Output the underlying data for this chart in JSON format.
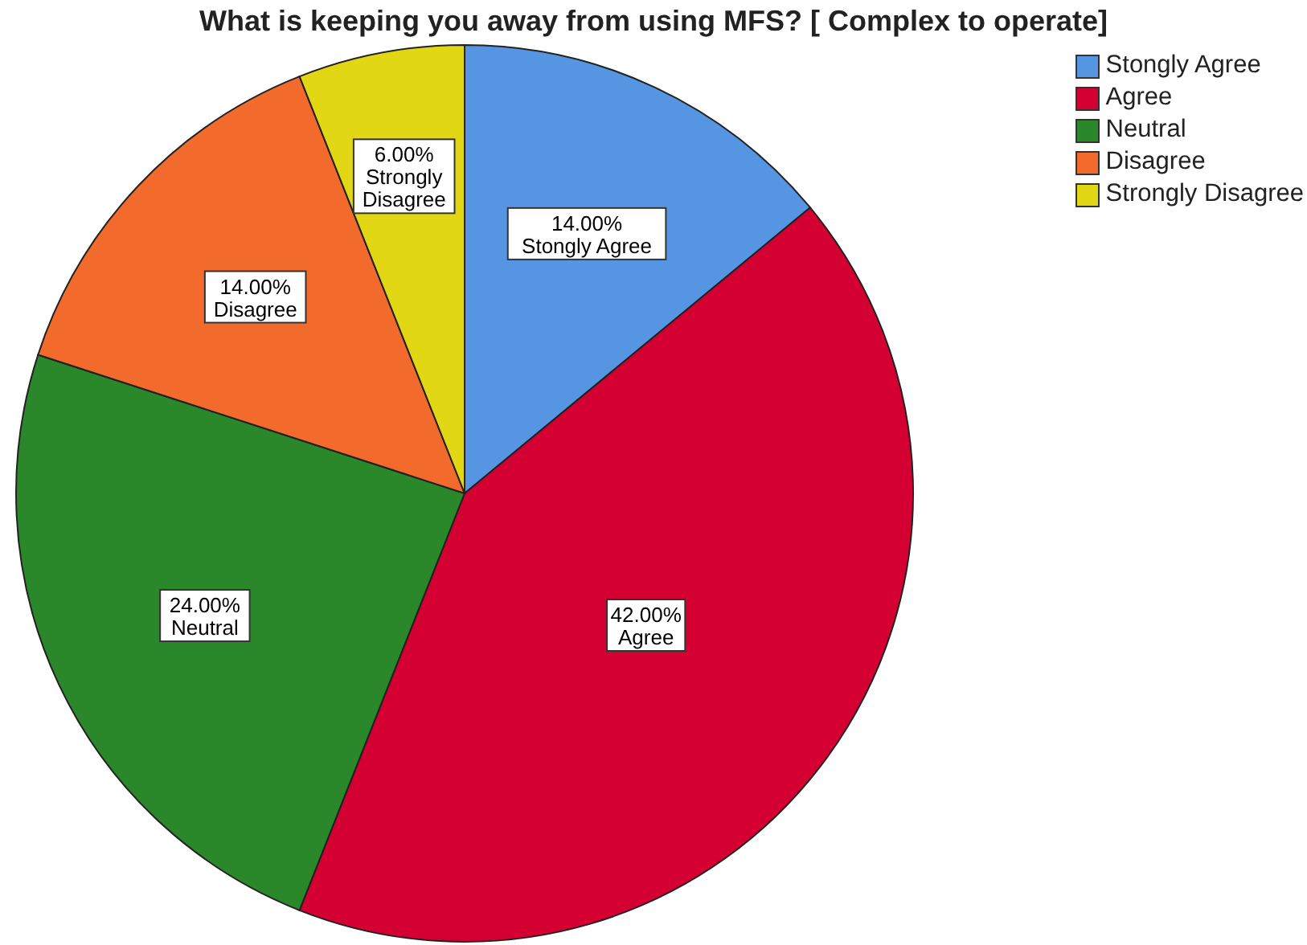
{
  "chart_data": {
    "type": "pie",
    "title": "What is keeping you away from using MFS? [ Complex to operate]",
    "categories": [
      "Stongly Agree",
      "Agree",
      "Neutral",
      "Disagree",
      "Strongly Disagree"
    ],
    "values": [
      14,
      42,
      24,
      14,
      6
    ],
    "colors": [
      "#5595e2",
      "#d40032",
      "#2a882a",
      "#f26a2c",
      "#e2d714"
    ],
    "value_labels": [
      "14.00%",
      "42.00%",
      "24.00%",
      "14.00%",
      "6.00%"
    ],
    "legend": "top right"
  }
}
